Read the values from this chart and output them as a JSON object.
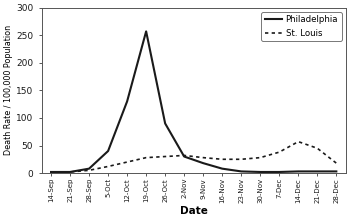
{
  "dates": [
    "14-Sep",
    "21-Sep",
    "28-Sep",
    "5-Oct",
    "12-Oct",
    "19-Oct",
    "26-Oct",
    "2-Nov",
    "9-Nov",
    "16-Nov",
    "23-Nov",
    "30-Nov",
    "7-Dec",
    "14-Dec",
    "21-Dec",
    "28-Dec"
  ],
  "philadelphia": [
    2,
    2,
    8,
    40,
    130,
    257,
    90,
    30,
    18,
    8,
    3,
    2,
    2,
    3,
    3,
    3
  ],
  "st_louis": [
    2,
    2,
    5,
    12,
    20,
    28,
    30,
    32,
    28,
    25,
    25,
    28,
    38,
    57,
    45,
    18
  ],
  "ylabel": "Death Rate / 100,000 Population",
  "xlabel": "Date",
  "ylim": [
    0,
    300
  ],
  "yticks": [
    0,
    50,
    100,
    150,
    200,
    250,
    300
  ],
  "legend_philadelphia": "Philadelphia",
  "legend_st_louis": "St. Louis",
  "bg_color": "#ffffff",
  "plot_bg_color": "#ffffff",
  "line_color": "#1a1a1a"
}
